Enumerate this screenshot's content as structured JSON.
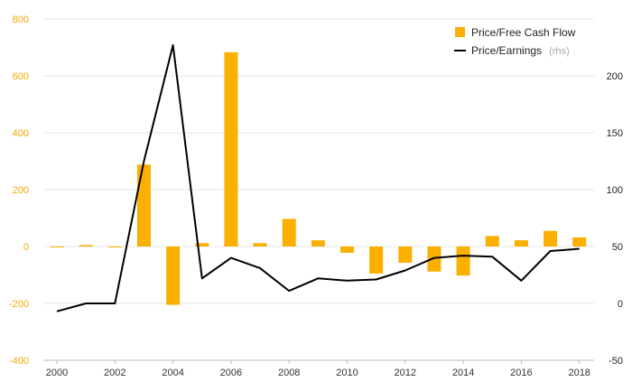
{
  "chart_data": {
    "type": "bar+line",
    "title": "",
    "x": [
      2000,
      2001,
      2002,
      2003,
      2004,
      2005,
      2006,
      2007,
      2008,
      2009,
      2010,
      2011,
      2012,
      2013,
      2014,
      2015,
      2016,
      2017,
      2018
    ],
    "x_tick_labels": [
      "2000",
      "2002",
      "2004",
      "2006",
      "2008",
      "2010",
      "2012",
      "2014",
      "2016",
      "2018"
    ],
    "left_axis": {
      "ylim": [
        -400,
        800
      ],
      "ticks": [
        "800",
        "600",
        "400",
        "200",
        "0",
        "-200",
        "-400"
      ],
      "tick_values": [
        800,
        600,
        400,
        200,
        0,
        -200,
        -400
      ]
    },
    "right_axis": {
      "ylim": [
        -50,
        250
      ],
      "ticks": [
        "200",
        "150",
        "100",
        "50",
        "0",
        "-50"
      ],
      "tick_values": [
        200,
        150,
        100,
        50,
        0,
        -50
      ]
    },
    "series": [
      {
        "name": "Price/Free Cash Flow",
        "type": "bar",
        "axis": "left",
        "color": "#fbb000",
        "values": [
          -3,
          5,
          -3,
          288,
          -205,
          12,
          683,
          12,
          97,
          22,
          -22,
          -95,
          -57,
          -88,
          -102,
          37,
          22,
          55,
          32
        ]
      },
      {
        "name": "Price/Earnings",
        "type": "line",
        "axis": "right",
        "color": "#000000",
        "values": [
          -7,
          0,
          0,
          125,
          227,
          22,
          40,
          31,
          11,
          22,
          20,
          21,
          29,
          40,
          42,
          41,
          20,
          46,
          48
        ]
      }
    ],
    "legend": {
      "position": "top-right",
      "entries": [
        {
          "label": "Price/Free Cash Flow",
          "note": ""
        },
        {
          "label": "Price/Earnings",
          "note": "(rhs)"
        }
      ]
    }
  },
  "colors": {
    "bar": "#fbb000",
    "line": "#000000",
    "left_tick": "#f5a800",
    "grid": "#e6e6e6"
  }
}
